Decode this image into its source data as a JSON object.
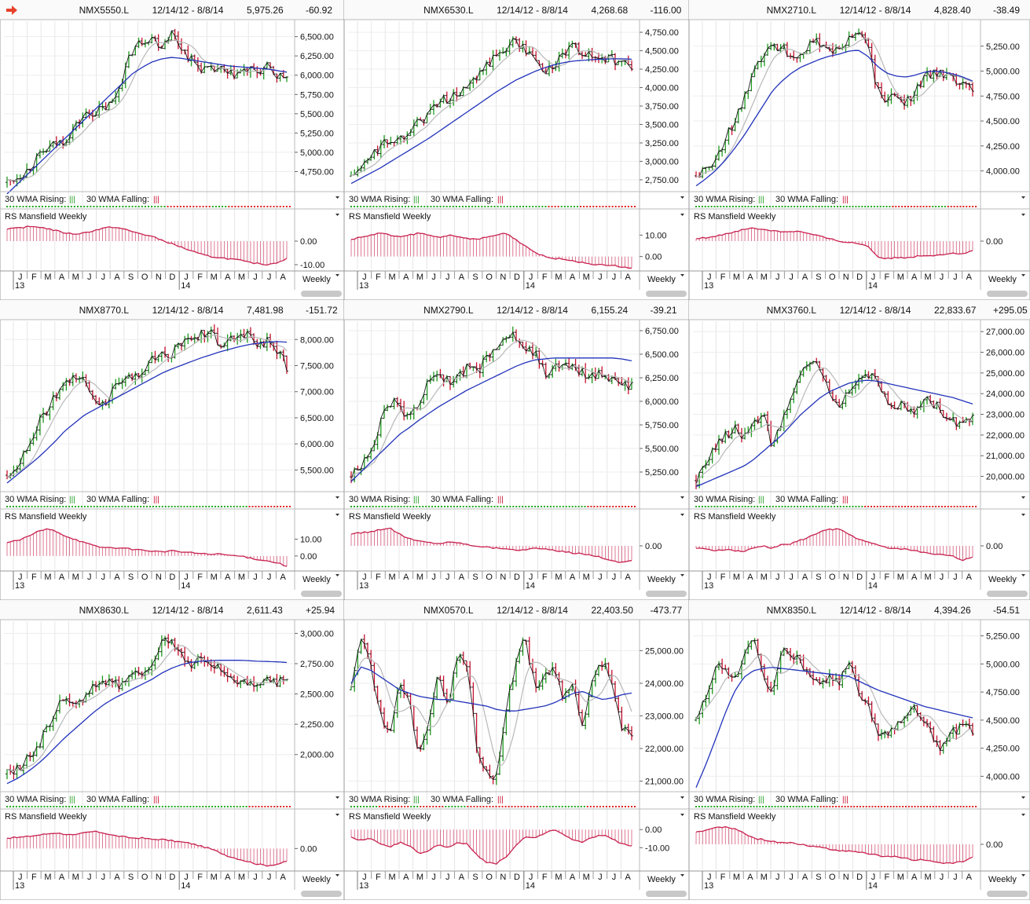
{
  "toolbar": {
    "arrow_icon": "red-right-arrow-icon",
    "arrow_color": "#e8412b"
  },
  "common": {
    "date_range": "12/14/12 - 8/8/14",
    "wma_rising_label": "30 WMA Rising:",
    "wma_falling_label": "30 WMA Falling:",
    "wma_marker": "|||",
    "rs_label": "RS Mansfield Weekly",
    "period_label": "Weekly",
    "months": [
      "J",
      "F",
      "M",
      "A",
      "M",
      "J",
      "J",
      "A",
      "S",
      "O",
      "N",
      "D",
      "J",
      "F",
      "M",
      "A",
      "M",
      "J",
      "J",
      "A"
    ],
    "years": [
      {
        "label": "13",
        "month_index": 0
      },
      {
        "label": "14",
        "month_index": 12
      }
    ],
    "colors": {
      "up_bar": "#1f9a1f",
      "down_bar": "#c8102e",
      "wick": "#222222",
      "wma30": "#2233bb",
      "wma10": "#b8b8b8",
      "rs_line": "#c8214e",
      "rising_dot": "#22aa22",
      "falling_dot": "#dd2222"
    }
  },
  "chart_data": [
    {
      "type": "line",
      "symbol": "NMX5550.L",
      "last": "5,975.26",
      "change": "-60.92",
      "price_ticks": [
        "6,500.00",
        "6,250.00",
        "6,000.00",
        "5,750.00",
        "5,500.00",
        "5,250.00",
        "5,000.00",
        "4,750.00"
      ],
      "price_tick_values": [
        6500,
        6250,
        6000,
        5750,
        5500,
        5250,
        5000,
        4750
      ],
      "ylim": [
        4500,
        6700
      ],
      "price": [
        4610,
        4680,
        4760,
        4900,
        5020,
        5110,
        5160,
        5320,
        5480,
        5520,
        5560,
        5650,
        5980,
        6330,
        6450,
        6500,
        6380,
        6560,
        6380,
        6210,
        6100,
        6050,
        6080,
        5990,
        6030,
        6060,
        6040,
        6100,
        5990,
        5975
      ],
      "wma30_start": 4460,
      "wma30_end": 6040,
      "wma30": [
        4460,
        4580,
        4700,
        4820,
        4940,
        5060,
        5180,
        5300,
        5420,
        5540,
        5660,
        5780,
        5900,
        6020,
        6100,
        6170,
        6210,
        6230,
        6220,
        6200,
        6180,
        6160,
        6140,
        6120,
        6110,
        6100,
        6090,
        6080,
        6060,
        6040
      ],
      "rs_ticks": [
        "0.00",
        "-10.00"
      ],
      "rs_tick_values": [
        0,
        -10
      ],
      "rs_ylim": [
        -12,
        8
      ],
      "rs": [
        5,
        5.5,
        6,
        6.2,
        5.5,
        4.5,
        3.5,
        3,
        3.5,
        4.5,
        5.5,
        6,
        5.2,
        4,
        3,
        2,
        0.5,
        -1,
        -2.5,
        -4,
        -5.5,
        -6.5,
        -7,
        -7.5,
        -8,
        -9,
        -9.5,
        -10,
        -9,
        -7.5
      ],
      "wma_state": "GGGGGGGGGGGGGGGGGGGGGGGGGGGGGGGGGGGGGGGGGGGGGGGGGGRRRRRRRRRRRRRRGGGGGRRRRRRRRRRRRRRRRRRRR"
    },
    {
      "type": "line",
      "symbol": "NMX6530.L",
      "last": "4,268.68",
      "change": "-116.00",
      "price_ticks": [
        "4,750.00",
        "4,500.00",
        "4,250.00",
        "4,000.00",
        "3,750.00",
        "3,500.00",
        "3,250.00",
        "3,000.00",
        "2,750.00"
      ],
      "price_tick_values": [
        4750,
        4500,
        4250,
        4000,
        3750,
        3500,
        3250,
        3000,
        2750
      ],
      "ylim": [
        2600,
        4900
      ],
      "price": [
        2800,
        2900,
        3050,
        3200,
        3280,
        3300,
        3450,
        3520,
        3650,
        3800,
        3850,
        3900,
        4000,
        4100,
        4300,
        4420,
        4550,
        4650,
        4500,
        4400,
        4200,
        4300,
        4450,
        4550,
        4480,
        4400,
        4420,
        4380,
        4350,
        4268
      ],
      "wma30": [
        2700,
        2770,
        2840,
        2910,
        2990,
        3070,
        3150,
        3230,
        3310,
        3400,
        3490,
        3580,
        3670,
        3760,
        3850,
        3940,
        4020,
        4100,
        4160,
        4220,
        4270,
        4310,
        4340,
        4360,
        4370,
        4380,
        4385,
        4390,
        4390,
        4385
      ],
      "rs_ticks": [
        "10.00",
        "0.00"
      ],
      "rs_tick_values": [
        10,
        0
      ],
      "rs_ylim": [
        -6,
        16
      ],
      "rs": [
        8,
        9,
        10,
        11,
        10,
        9,
        10,
        11,
        10,
        9,
        10,
        9,
        8.5,
        8,
        9,
        10,
        11,
        8,
        5,
        2,
        0,
        -1,
        -1,
        -2,
        -3,
        -3.5,
        -4,
        -4,
        -5,
        -5.5
      ],
      "wma_state": "GGGGGGGGGGGGGGGGGGGGGGGGGGGGGGGGGGGGGGGGGGGGGGGGGGGGGGGGGGGGGGRRRRGGGGGGRRRRRRRRRRRRRRRRRR"
    },
    {
      "type": "line",
      "symbol": "NMX2710.L",
      "last": "4,828.40",
      "change": "-38.49",
      "price_ticks": [
        "5,250.00",
        "5,000.00",
        "4,750.00",
        "4,500.00",
        "4,250.00",
        "4,000.00"
      ],
      "price_tick_values": [
        5250,
        5000,
        4750,
        4500,
        4250,
        4000
      ],
      "ylim": [
        3800,
        5500
      ],
      "price": [
        3950,
        4000,
        4120,
        4300,
        4500,
        4700,
        4950,
        5150,
        5250,
        5250,
        5150,
        5200,
        5250,
        5300,
        5220,
        5200,
        5300,
        5400,
        5300,
        4800,
        4700,
        4750,
        4700,
        4800,
        4950,
        5000,
        4950,
        4900,
        4850,
        4828
      ],
      "wma30": [
        3850,
        3920,
        4000,
        4100,
        4220,
        4350,
        4500,
        4650,
        4800,
        4900,
        4980,
        5040,
        5080,
        5120,
        5150,
        5170,
        5200,
        5210,
        5150,
        5050,
        4980,
        4950,
        4940,
        4960,
        4990,
        5000,
        4990,
        4970,
        4940,
        4900
      ],
      "rs_ticks": [
        "0.00"
      ],
      "rs_tick_values": [
        0
      ],
      "rs_ylim": [
        -12,
        8
      ],
      "rs": [
        1,
        1.5,
        2,
        3,
        4,
        5,
        5.5,
        5,
        4.5,
        4,
        4.2,
        4,
        3,
        2,
        1,
        0,
        -0.5,
        -1,
        -2,
        -6.5,
        -7.5,
        -7,
        -7,
        -6.5,
        -6,
        -6,
        -5.5,
        -5,
        -5.5,
        -4
      ],
      "wma_state": "GGGGGGGGGGGGGGGGGGGGGGGGGGGGGGGGGGGGGGGGGGGGGGGGGGGGGGGGGGGGGGGGRRRRRRRRRRRRRGGGGGRRRRRRRRRR"
    },
    {
      "type": "line",
      "symbol": "NMX8770.L",
      "last": "7,481.98",
      "change": "-151.72",
      "price_ticks": [
        "8,000.00",
        "7,500.00",
        "7,000.00",
        "6,500.00",
        "6,000.00",
        "5,500.00"
      ],
      "price_tick_values": [
        8000,
        7500,
        7000,
        6500,
        6000,
        5500
      ],
      "ylim": [
        5100,
        8350
      ],
      "price": [
        5400,
        5600,
        5900,
        6300,
        6600,
        6900,
        7100,
        7300,
        7200,
        6900,
        6750,
        7000,
        7200,
        7250,
        7400,
        7600,
        7700,
        7700,
        7900,
        8000,
        8100,
        8200,
        7900,
        8000,
        8100,
        8100,
        7900,
        7950,
        7800,
        7481
      ],
      "wma30": [
        5250,
        5400,
        5550,
        5700,
        5870,
        6050,
        6250,
        6400,
        6550,
        6650,
        6750,
        6850,
        6950,
        7050,
        7150,
        7250,
        7350,
        7430,
        7500,
        7570,
        7640,
        7700,
        7760,
        7810,
        7860,
        7900,
        7930,
        7950,
        7960,
        7950
      ],
      "rs_ticks": [
        "10.00",
        "0.00"
      ],
      "rs_tick_values": [
        10,
        0
      ],
      "rs_ylim": [
        -8,
        20
      ],
      "rs": [
        8,
        9,
        11,
        14,
        16,
        15,
        12,
        10,
        8,
        6,
        5,
        5,
        4.5,
        4,
        3.5,
        3,
        2.5,
        3,
        2.5,
        2,
        1.5,
        1,
        1,
        0.5,
        0,
        -1,
        -2,
        -3,
        -4,
        -6
      ],
      "wma_state": "GGGGGGGGGGGGGGGGGGGGGGGGGGGGGGGGGGGGGGGGGGGGGGGGGGGGGGGGGGGGGGGGGGGGGGGGGGGGGGRRRRRRRRRRRRRR"
    },
    {
      "type": "line",
      "symbol": "NMX2790.L",
      "last": "6,155.24",
      "change": "-39.21",
      "price_ticks": [
        "6,750.00",
        "6,500.00",
        "6,250.00",
        "6,000.00",
        "5,750.00",
        "5,500.00",
        "5,250.00"
      ],
      "price_tick_values": [
        6750,
        6500,
        6250,
        6000,
        5750,
        5500,
        5250
      ],
      "ylim": [
        5050,
        6850
      ],
      "price": [
        5200,
        5300,
        5500,
        5750,
        6000,
        5950,
        5800,
        6000,
        6200,
        6300,
        6200,
        6250,
        6350,
        6300,
        6450,
        6600,
        6650,
        6700,
        6550,
        6500,
        6300,
        6350,
        6400,
        6350,
        6300,
        6250,
        6300,
        6200,
        6180,
        6155
      ],
      "wma30": [
        5150,
        5250,
        5350,
        5450,
        5550,
        5650,
        5720,
        5800,
        5870,
        5940,
        6000,
        6060,
        6120,
        6170,
        6220,
        6270,
        6320,
        6370,
        6410,
        6440,
        6450,
        6460,
        6460,
        6460,
        6460,
        6460,
        6460,
        6460,
        6450,
        6430
      ],
      "rs_ticks": [
        "0.00"
      ],
      "rs_tick_values": [
        0
      ],
      "rs_ylim": [
        -10,
        10
      ],
      "rs": [
        5,
        5.5,
        6,
        7,
        7.5,
        5,
        3,
        2,
        1.5,
        1,
        1.5,
        1.5,
        0.5,
        0,
        -0.5,
        -1,
        -1,
        -2,
        -1.5,
        -1,
        -1.5,
        -2,
        -2.5,
        -3,
        -3.5,
        -4,
        -5,
        -6.5,
        -7,
        -6
      ],
      "wma_state": "GGGGGGGGGGGGGGGGGGGGGGGGGGGGGGGGGGGGGGGGGGGGGGGGGGGGGGGGGGGGGGGGGGGGGGGGGGGGRRRRRRRRRRRRRRRR"
    },
    {
      "type": "line",
      "symbol": "NMX3760.L",
      "last": "22,833.67",
      "change": "+295.05",
      "price_ticks": [
        "27,000.00",
        "26,000.00",
        "25,000.00",
        "24,000.00",
        "23,000.00",
        "22,000.00",
        "21,000.00",
        "20,000.00"
      ],
      "price_tick_values": [
        27000,
        26000,
        25000,
        24000,
        23000,
        22000,
        21000,
        20000
      ],
      "ylim": [
        19300,
        27500
      ],
      "price": [
        19800,
        20500,
        21500,
        22000,
        22300,
        21800,
        22500,
        23000,
        21500,
        22500,
        24000,
        25000,
        25500,
        25200,
        24000,
        23500,
        24000,
        24500,
        24800,
        24600,
        23600,
        23500,
        23400,
        23200,
        23800,
        23500,
        23000,
        22600,
        22500,
        22833
      ],
      "wma30": [
        19500,
        19700,
        19900,
        20100,
        20300,
        20500,
        20800,
        21200,
        21600,
        22000,
        22500,
        23000,
        23400,
        23800,
        24100,
        24300,
        24500,
        24600,
        24650,
        24600,
        24500,
        24400,
        24300,
        24200,
        24100,
        24000,
        23900,
        23800,
        23650,
        23500
      ],
      "rs_ticks": [
        "0.00"
      ],
      "rs_tick_values": [
        0
      ],
      "rs_ylim": [
        -10,
        10
      ],
      "rs": [
        -1,
        -1.5,
        -2,
        -1.5,
        -2,
        -2.5,
        -1,
        0,
        -1,
        0.5,
        1,
        2.5,
        4,
        6,
        7,
        7,
        5,
        3,
        1.5,
        0.5,
        -1,
        -1,
        -1.5,
        -2,
        -3,
        -3.5,
        -3.5,
        -4.5,
        -6,
        -5
      ],
      "wma_state": "GGGGGGGGGGGGGGGGGGGGGGGGGGGGGGGGGGGGGGGGGGGGGGGGGGGGGGGRRRRRRRRRRRRRRRRRRRRRRRRRRRRRRRRRRRRR"
    },
    {
      "type": "line",
      "symbol": "NMX8630.L",
      "last": "2,611.43",
      "change": "+25.94",
      "price_ticks": [
        "3,000.00",
        "2,750.00",
        "2,500.00",
        "2,250.00",
        "2,000.00"
      ],
      "price_tick_values": [
        3000,
        2750,
        2500,
        2250,
        2000
      ],
      "ylim": [
        1700,
        3100
      ],
      "price": [
        1840,
        1880,
        1950,
        2050,
        2180,
        2380,
        2450,
        2380,
        2480,
        2580,
        2600,
        2620,
        2560,
        2640,
        2680,
        2750,
        2950,
        2930,
        2850,
        2750,
        2800,
        2760,
        2700,
        2650,
        2620,
        2600,
        2610,
        2600,
        2605,
        2611
      ],
      "wma30": [
        1760,
        1800,
        1850,
        1910,
        1980,
        2060,
        2140,
        2210,
        2280,
        2350,
        2410,
        2460,
        2500,
        2540,
        2580,
        2620,
        2670,
        2710,
        2740,
        2760,
        2770,
        2775,
        2778,
        2778,
        2778,
        2775,
        2770,
        2768,
        2765,
        2760
      ],
      "rs_ticks": [
        "0.00"
      ],
      "rs_tick_values": [
        0
      ],
      "rs_ylim": [
        -8,
        10
      ],
      "rs": [
        4,
        4.2,
        4.5,
        5,
        5.5,
        6,
        5.5,
        5,
        6,
        6.5,
        6,
        5,
        4.5,
        4,
        4,
        3.5,
        3.5,
        3,
        2.5,
        2,
        1,
        0,
        -1.5,
        -3,
        -4,
        -5,
        -6,
        -6.5,
        -6,
        -5
      ],
      "wma_state": "GGGGGGGGGGGGGGGGGGGGGGGGGGGGGGGGGGGGGGGGGGGGGGGGGGGGGGGGGGGGGGGGGGGGGGGGGGGGGGRRRRRRRRRRRRRR"
    },
    {
      "type": "line",
      "symbol": "NMX0570.L",
      "last": "22,403.50",
      "change": "-473.77",
      "price_ticks": [
        "25,000.00",
        "24,000.00",
        "23,000.00",
        "22,000.00",
        "21,000.00"
      ],
      "price_tick_values": [
        25000,
        24000,
        23000,
        22000,
        21000
      ],
      "ylim": [
        20700,
        25900
      ],
      "price": [
        23800,
        25500,
        24500,
        23200,
        22300,
        24000,
        23500,
        21800,
        22800,
        24300,
        23200,
        25000,
        24500,
        22000,
        21200,
        21200,
        23200,
        24600,
        25400,
        23800,
        24200,
        24400,
        23500,
        24000,
        22500,
        24300,
        24700,
        23800,
        22600,
        22403
      ],
      "wma30": [
        24000,
        24500,
        24400,
        24200,
        24000,
        23800,
        23700,
        23600,
        23550,
        23500,
        23500,
        23450,
        23400,
        23350,
        23300,
        23200,
        23150,
        23150,
        23200,
        23250,
        23300,
        23400,
        23550,
        23700,
        23750,
        23600,
        23500,
        23550,
        23650,
        23700
      ],
      "rs_ticks": [
        "0.00",
        "-10.00"
      ],
      "rs_tick_values": [
        0,
        -10
      ],
      "rs_ylim": [
        -22,
        4
      ],
      "rs": [
        -4,
        -6,
        -5,
        -8,
        -10,
        -7,
        -9,
        -13,
        -12,
        -8,
        -10,
        -7,
        -8,
        -14,
        -18,
        -19,
        -15,
        -9,
        -4,
        -5,
        -2,
        0,
        -3,
        -6,
        -7,
        -4,
        -3,
        -5,
        -8,
        -9
      ],
      "wma_state": "GGGGGGGGGRRRRRRRRRRGGGRRRRRRRRGGGGGGGRRRRRRRRRRRRRRRRRRRRRRRGGGGGGGGGGGGGGGRRRRRRRRRRRRRRRR"
    },
    {
      "type": "line",
      "symbol": "NMX8350.L",
      "last": "4,394.26",
      "change": "-54.51",
      "price_ticks": [
        "5,250.00",
        "5,000.00",
        "4,750.00",
        "4,500.00",
        "4,250.00",
        "4,000.00"
      ],
      "price_tick_values": [
        5250,
        5000,
        4750,
        4500,
        4250,
        4000
      ],
      "ylim": [
        3870,
        5380
      ],
      "price": [
        4500,
        4700,
        4950,
        5000,
        4850,
        5050,
        5250,
        4900,
        4750,
        5100,
        5100,
        5000,
        4850,
        4800,
        4900,
        4800,
        5050,
        4750,
        4650,
        4400,
        4400,
        4450,
        4550,
        4600,
        4500,
        4300,
        4250,
        4400,
        4450,
        4394
      ],
      "wma30": [
        3900,
        4100,
        4320,
        4550,
        4750,
        4880,
        4940,
        4960,
        4970,
        4960,
        4950,
        4940,
        4930,
        4920,
        4910,
        4900,
        4890,
        4850,
        4810,
        4770,
        4740,
        4710,
        4680,
        4650,
        4620,
        4600,
        4580,
        4560,
        4540,
        4520
      ],
      "rs_ticks": [
        "0.00"
      ],
      "rs_tick_values": [
        0
      ],
      "rs_ylim": [
        -8,
        7
      ],
      "rs": [
        4,
        4.5,
        5.5,
        5.5,
        5,
        3.5,
        2,
        1.5,
        1,
        0.5,
        0.5,
        0,
        -0.5,
        -1,
        -1.5,
        -2,
        -2,
        -2.5,
        -3,
        -3.5,
        -4,
        -4,
        -4.5,
        -5,
        -5,
        -5.5,
        -6,
        -6,
        -5.5,
        -4
      ],
      "wma_state": "GGGGGGGGGGGGGGGGGGGGGGGGGGGGGGGGGGGGGGGGGRRRRRRRRRRRRRRRRRRRRRRRRRRRRRRRRRRRRRRRRRRRRRRRRRRRR"
    }
  ]
}
